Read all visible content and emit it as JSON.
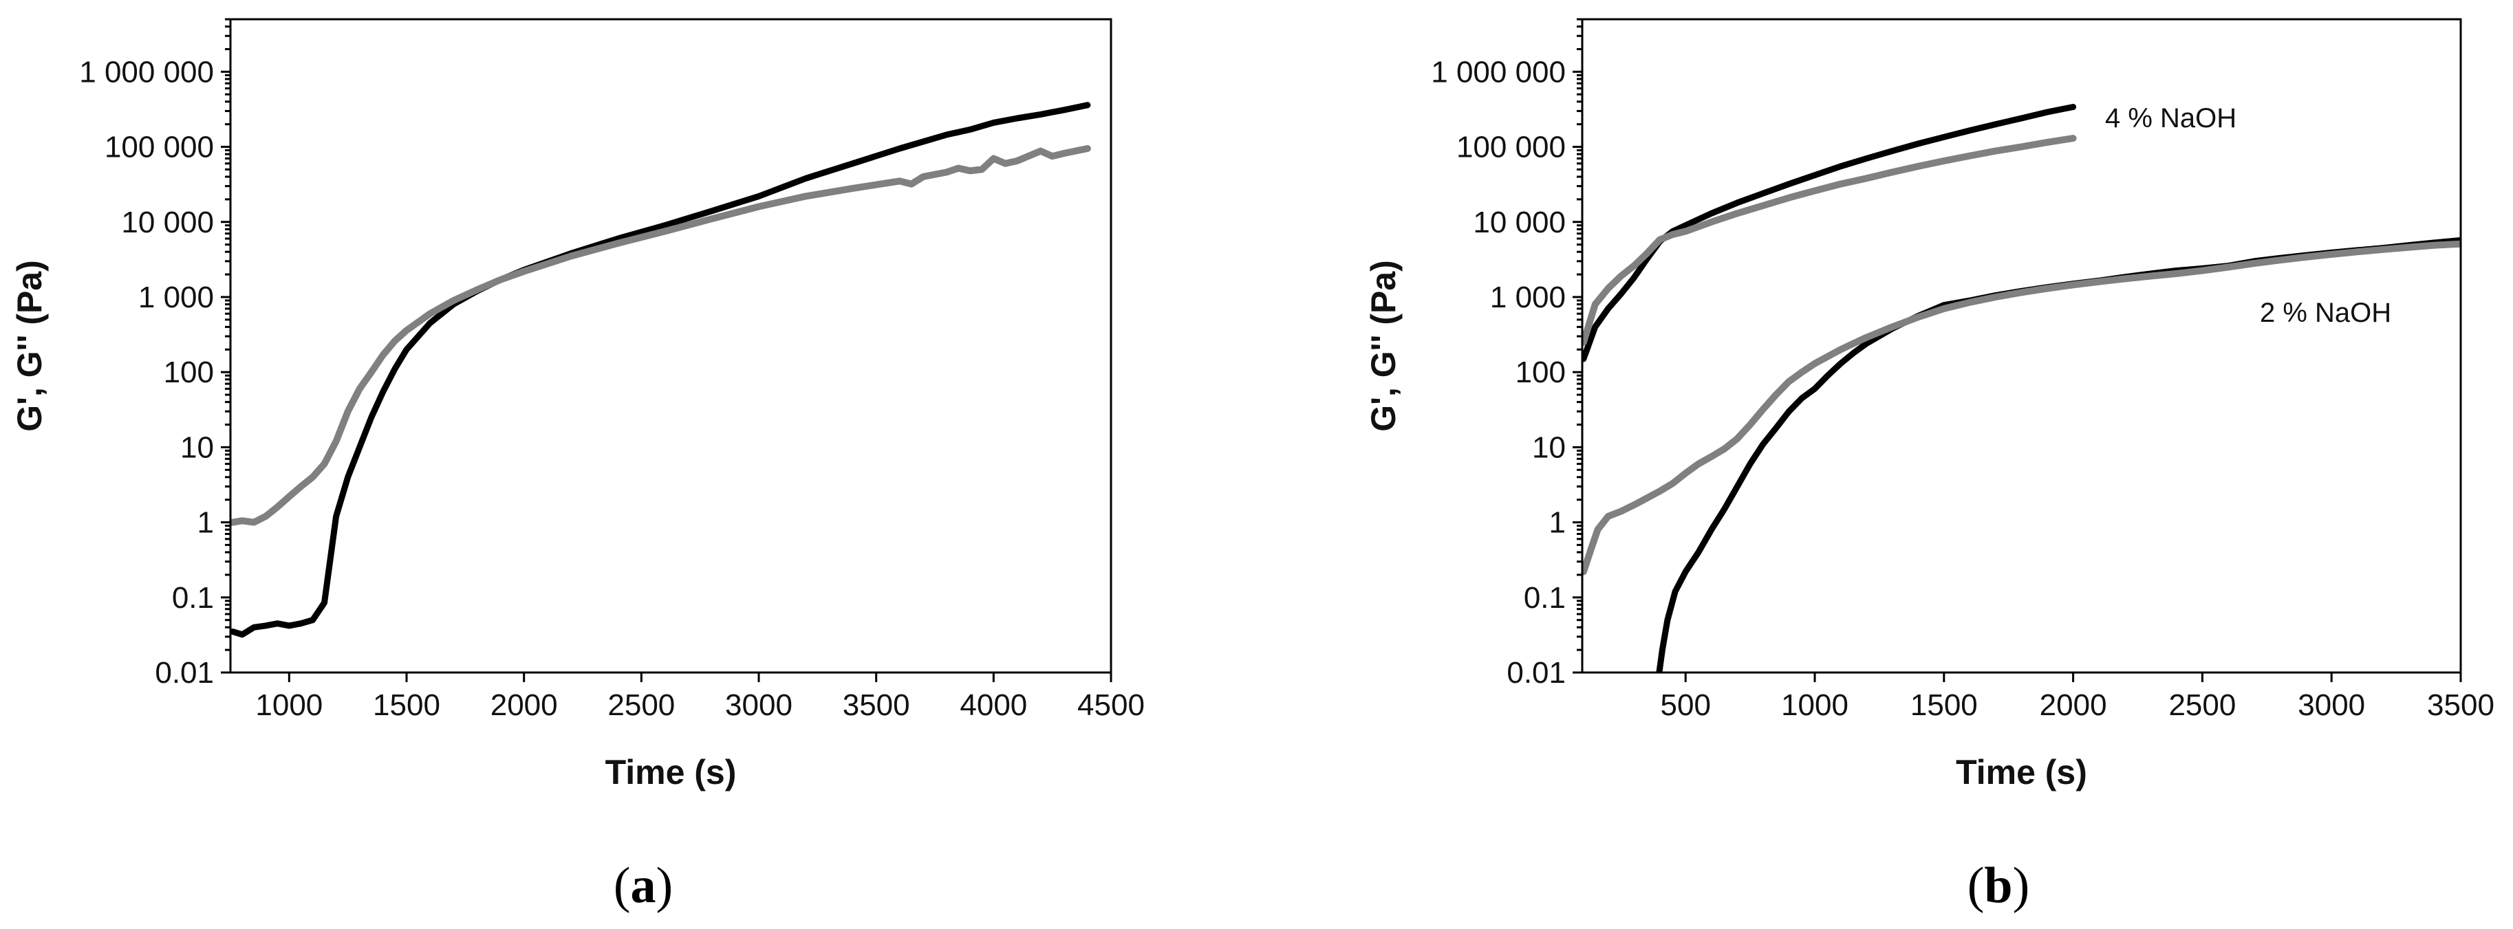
{
  "chart_data": [
    {
      "id": "a",
      "type": "line",
      "title": "",
      "xlabel": "Time (s)",
      "ylabel": "G', G'' (Pa)",
      "xscale": "linear",
      "yscale": "log",
      "xlim": [
        750,
        4500
      ],
      "ylim": [
        0.01,
        5000000
      ],
      "xticks": [
        1000,
        1500,
        2000,
        2500,
        3000,
        3500,
        4000,
        4500
      ],
      "xtick_labels": [
        "1000",
        "1500",
        "2000",
        "2500",
        "3000",
        "3500",
        "4000",
        "4500"
      ],
      "yticks": [
        0.01,
        0.1,
        1,
        10,
        100,
        1000,
        10000,
        100000,
        1000000
      ],
      "ytick_labels": [
        "0.01",
        "0.1",
        "1",
        "10",
        "100",
        "1 000",
        "10 000",
        "100 000",
        "1 000 000"
      ],
      "grid": false,
      "panel_label": {
        "open": "(",
        "letter": "a",
        "close": ")"
      },
      "annotations": [],
      "series": [
        {
          "name": "G'",
          "color": "#000000",
          "points": [
            [
              760,
              0.035
            ],
            [
              800,
              0.032
            ],
            [
              850,
              0.04
            ],
            [
              900,
              0.042
            ],
            [
              950,
              0.045
            ],
            [
              1000,
              0.042
            ],
            [
              1050,
              0.045
            ],
            [
              1100,
              0.05
            ],
            [
              1150,
              0.085
            ],
            [
              1200,
              1.2
            ],
            [
              1250,
              4
            ],
            [
              1300,
              10
            ],
            [
              1350,
              25
            ],
            [
              1400,
              55
            ],
            [
              1450,
              110
            ],
            [
              1500,
              200
            ],
            [
              1600,
              450
            ],
            [
              1700,
              800
            ],
            [
              1800,
              1200
            ],
            [
              1900,
              1700
            ],
            [
              2000,
              2300
            ],
            [
              2200,
              3800
            ],
            [
              2400,
              6000
            ],
            [
              2600,
              9000
            ],
            [
              2800,
              14000
            ],
            [
              3000,
              22000
            ],
            [
              3200,
              38000
            ],
            [
              3400,
              60000
            ],
            [
              3600,
              95000
            ],
            [
              3800,
              145000
            ],
            [
              3900,
              170000
            ],
            [
              4000,
              210000
            ],
            [
              4100,
              240000
            ],
            [
              4200,
              270000
            ],
            [
              4300,
              310000
            ],
            [
              4400,
              360000
            ]
          ]
        },
        {
          "name": "G''",
          "color": "#808080",
          "points": [
            [
              760,
              1.0
            ],
            [
              800,
              1.05
            ],
            [
              850,
              1.0
            ],
            [
              900,
              1.2
            ],
            [
              950,
              1.6
            ],
            [
              1000,
              2.2
            ],
            [
              1050,
              3.0
            ],
            [
              1100,
              4.0
            ],
            [
              1150,
              6.0
            ],
            [
              1200,
              12
            ],
            [
              1250,
              30
            ],
            [
              1300,
              60
            ],
            [
              1350,
              100
            ],
            [
              1400,
              170
            ],
            [
              1450,
              260
            ],
            [
              1500,
              360
            ],
            [
              1600,
              600
            ],
            [
              1700,
              900
            ],
            [
              1800,
              1250
            ],
            [
              1900,
              1700
            ],
            [
              2000,
              2200
            ],
            [
              2200,
              3500
            ],
            [
              2400,
              5200
            ],
            [
              2600,
              7500
            ],
            [
              2800,
              11000
            ],
            [
              3000,
              16000
            ],
            [
              3200,
              22000
            ],
            [
              3400,
              28000
            ],
            [
              3600,
              35000
            ],
            [
              3650,
              32000
            ],
            [
              3700,
              40000
            ],
            [
              3800,
              46000
            ],
            [
              3850,
              52000
            ],
            [
              3900,
              48000
            ],
            [
              3950,
              50000
            ],
            [
              4000,
              70000
            ],
            [
              4050,
              60000
            ],
            [
              4100,
              65000
            ],
            [
              4200,
              88000
            ],
            [
              4250,
              75000
            ],
            [
              4300,
              82000
            ],
            [
              4400,
              95000
            ]
          ]
        }
      ]
    },
    {
      "id": "b",
      "type": "line",
      "title": "",
      "xlabel": "Time (s)",
      "ylabel": "G', G'' (Pa)",
      "xscale": "linear",
      "yscale": "log",
      "xlim": [
        100,
        3500
      ],
      "ylim": [
        0.01,
        5000000
      ],
      "xticks": [
        500,
        1000,
        1500,
        2000,
        2500,
        3000,
        3500
      ],
      "xtick_labels": [
        "500",
        "1000",
        "1500",
        "2000",
        "2500",
        "3000",
        "3500"
      ],
      "yticks": [
        0.01,
        0.1,
        1,
        10,
        100,
        1000,
        10000,
        100000,
        1000000
      ],
      "ytick_labels": [
        "0.01",
        "0.1",
        "1",
        "10",
        "100",
        "1 000",
        "10 000",
        "100 000",
        "1 000 000"
      ],
      "grid": false,
      "panel_label": {
        "open": "(",
        "letter": "b",
        "close": ")"
      },
      "annotations": [
        {
          "text": "4 % NaOH",
          "x": 2120,
          "y": 180000
        },
        {
          "text": "2 % NaOH",
          "x": 2900,
          "y": 650
        }
      ],
      "series": [
        {
          "name": "G' (4 % NaOH)",
          "color": "#000000",
          "points": [
            [
              105,
              150
            ],
            [
              150,
              400
            ],
            [
              200,
              700
            ],
            [
              250,
              1100
            ],
            [
              300,
              1800
            ],
            [
              350,
              3200
            ],
            [
              400,
              5500
            ],
            [
              450,
              7500
            ],
            [
              500,
              9000
            ],
            [
              600,
              13000
            ],
            [
              700,
              18000
            ],
            [
              800,
              24000
            ],
            [
              900,
              32000
            ],
            [
              1000,
              42000
            ],
            [
              1100,
              55000
            ],
            [
              1200,
              70000
            ],
            [
              1300,
              88000
            ],
            [
              1400,
              110000
            ],
            [
              1500,
              135000
            ],
            [
              1600,
              165000
            ],
            [
              1700,
              200000
            ],
            [
              1800,
              240000
            ],
            [
              1900,
              290000
            ],
            [
              2000,
              340000
            ]
          ]
        },
        {
          "name": "G'' (4 % NaOH)",
          "color": "#808080",
          "points": [
            [
              105,
              250
            ],
            [
              150,
              800
            ],
            [
              200,
              1300
            ],
            [
              250,
              1900
            ],
            [
              300,
              2600
            ],
            [
              350,
              3800
            ],
            [
              400,
              5800
            ],
            [
              450,
              6800
            ],
            [
              500,
              7500
            ],
            [
              600,
              10000
            ],
            [
              700,
              13000
            ],
            [
              800,
              16500
            ],
            [
              900,
              21000
            ],
            [
              1000,
              26000
            ],
            [
              1100,
              32000
            ],
            [
              1200,
              38000
            ],
            [
              1300,
              46000
            ],
            [
              1400,
              55000
            ],
            [
              1500,
              65000
            ],
            [
              1600,
              76000
            ],
            [
              1700,
              88000
            ],
            [
              1800,
              100000
            ],
            [
              1900,
              115000
            ],
            [
              2000,
              130000
            ]
          ]
        },
        {
          "name": "G' (2 % NaOH)",
          "color": "#000000",
          "points": [
            [
              398,
              0.01
            ],
            [
              410,
              0.02
            ],
            [
              430,
              0.05
            ],
            [
              460,
              0.12
            ],
            [
              500,
              0.22
            ],
            [
              550,
              0.4
            ],
            [
              600,
              0.8
            ],
            [
              650,
              1.5
            ],
            [
              700,
              3
            ],
            [
              750,
              6
            ],
            [
              800,
              11
            ],
            [
              850,
              18
            ],
            [
              900,
              30
            ],
            [
              950,
              45
            ],
            [
              1000,
              60
            ],
            [
              1050,
              90
            ],
            [
              1100,
              130
            ],
            [
              1150,
              180
            ],
            [
              1200,
              240
            ],
            [
              1300,
              380
            ],
            [
              1400,
              560
            ],
            [
              1500,
              780
            ],
            [
              1600,
              900
            ],
            [
              1700,
              1050
            ],
            [
              1800,
              1200
            ],
            [
              1900,
              1350
            ],
            [
              2000,
              1500
            ],
            [
              2100,
              1650
            ],
            [
              2200,
              1850
            ],
            [
              2300,
              2050
            ],
            [
              2400,
              2250
            ],
            [
              2500,
              2400
            ],
            [
              2600,
              2600
            ],
            [
              2700,
              3000
            ],
            [
              2800,
              3300
            ],
            [
              2900,
              3600
            ],
            [
              3000,
              3900
            ],
            [
              3100,
              4200
            ],
            [
              3200,
              4500
            ],
            [
              3300,
              4900
            ],
            [
              3400,
              5300
            ],
            [
              3500,
              5700
            ]
          ]
        },
        {
          "name": "G'' (2 % NaOH)",
          "color": "#808080",
          "points": [
            [
              105,
              0.22
            ],
            [
              130,
              0.4
            ],
            [
              160,
              0.8
            ],
            [
              200,
              1.2
            ],
            [
              250,
              1.4
            ],
            [
              300,
              1.7
            ],
            [
              350,
              2.1
            ],
            [
              400,
              2.6
            ],
            [
              450,
              3.3
            ],
            [
              500,
              4.5
            ],
            [
              550,
              6
            ],
            [
              600,
              7.5
            ],
            [
              650,
              9.5
            ],
            [
              700,
              13
            ],
            [
              750,
              20
            ],
            [
              800,
              32
            ],
            [
              850,
              50
            ],
            [
              900,
              75
            ],
            [
              950,
              100
            ],
            [
              1000,
              130
            ],
            [
              1100,
              200
            ],
            [
              1200,
              290
            ],
            [
              1300,
              400
            ],
            [
              1400,
              540
            ],
            [
              1500,
              700
            ],
            [
              1600,
              850
            ],
            [
              1700,
              1000
            ],
            [
              1800,
              1150
            ],
            [
              1900,
              1300
            ],
            [
              2000,
              1450
            ],
            [
              2100,
              1600
            ],
            [
              2200,
              1750
            ],
            [
              2300,
              1900
            ],
            [
              2400,
              2050
            ],
            [
              2500,
              2250
            ],
            [
              2600,
              2500
            ],
            [
              2700,
              2800
            ],
            [
              2800,
              3100
            ],
            [
              2900,
              3400
            ],
            [
              3000,
              3700
            ],
            [
              3100,
              4000
            ],
            [
              3200,
              4300
            ],
            [
              3300,
              4600
            ],
            [
              3400,
              4900
            ],
            [
              3500,
              5100
            ]
          ]
        }
      ]
    }
  ]
}
